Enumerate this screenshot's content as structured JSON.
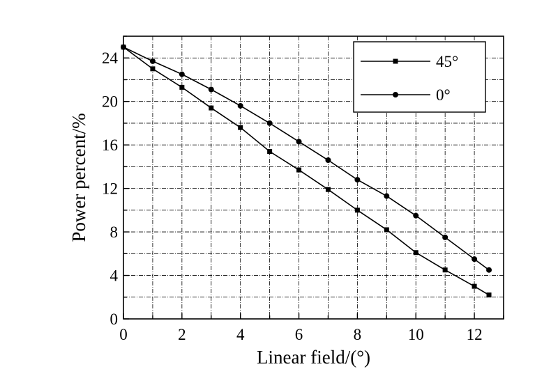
{
  "chart_data": {
    "type": "line",
    "xlabel": "Linear field/(°)",
    "ylabel": "Power percent/%",
    "xlim": [
      0,
      13
    ],
    "ylim": [
      0,
      26
    ],
    "x_ticks": [
      0,
      2,
      4,
      6,
      8,
      10,
      12
    ],
    "y_ticks": [
      0,
      4,
      8,
      12,
      16,
      20,
      24
    ],
    "x_tick_labels": [
      "0",
      "2",
      "4",
      "6",
      "8",
      "10",
      "12"
    ],
    "y_tick_labels": [
      "0",
      "4",
      "8",
      "12",
      "16",
      "20",
      "24"
    ],
    "grid": true,
    "legend_position": "top-right",
    "series": [
      {
        "name": "45°",
        "marker": "square",
        "x": [
          0,
          1,
          2,
          3,
          4,
          5,
          6,
          7,
          8,
          9,
          10,
          11,
          12,
          12.5
        ],
        "values": [
          25.0,
          23.0,
          21.3,
          19.4,
          17.6,
          15.4,
          13.7,
          11.9,
          10.0,
          8.2,
          6.1,
          4.5,
          3.0,
          2.2
        ]
      },
      {
        "name": "0°",
        "marker": "circle",
        "x": [
          0,
          1,
          2,
          3,
          4,
          5,
          6,
          7,
          8,
          9,
          10,
          11,
          12,
          12.5
        ],
        "values": [
          25.0,
          23.7,
          22.5,
          21.1,
          19.6,
          18.0,
          16.3,
          14.6,
          12.8,
          11.3,
          9.5,
          7.5,
          5.5,
          4.5
        ]
      }
    ]
  }
}
